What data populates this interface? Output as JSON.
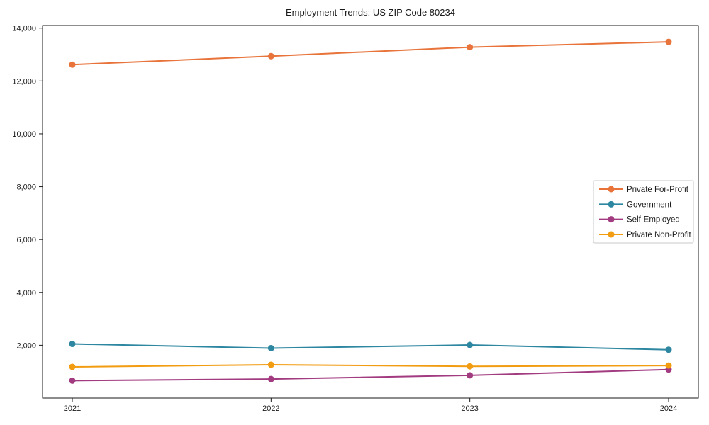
{
  "figure": {
    "title": "Employment Trends: US ZIP Code 80234"
  },
  "chart_data": {
    "type": "line",
    "title": "Employment Trends: US ZIP Code 80234",
    "categories": [
      "2021",
      "2022",
      "2023",
      "2024"
    ],
    "series": [
      {
        "name": "Private For-Profit",
        "color": "#E8743B",
        "values": [
          12620,
          12940,
          13280,
          13480
        ]
      },
      {
        "name": "Government",
        "color": "#2E87A1",
        "values": [
          2050,
          1890,
          2010,
          1830
        ]
      },
      {
        "name": "Self-Employed",
        "color": "#A23B80",
        "values": [
          660,
          720,
          860,
          1080
        ]
      },
      {
        "name": "Private Non-Profit",
        "color": "#F29C11",
        "values": [
          1180,
          1260,
          1200,
          1230
        ]
      }
    ],
    "xlabel": "",
    "ylabel": "",
    "ylim": [
      0,
      14100
    ],
    "yticks": [
      2000,
      4000,
      6000,
      8000,
      10000,
      12000,
      14000
    ],
    "ytick_labels": [
      "2,000",
      "4,000",
      "6,000",
      "8,000",
      "10,000",
      "12,000",
      "14,000"
    ],
    "grid": false,
    "legend_position": "right-middle",
    "marker": "circle",
    "axis_color": "#1a1a1a",
    "legend_border_color": "#c9c9c9"
  }
}
